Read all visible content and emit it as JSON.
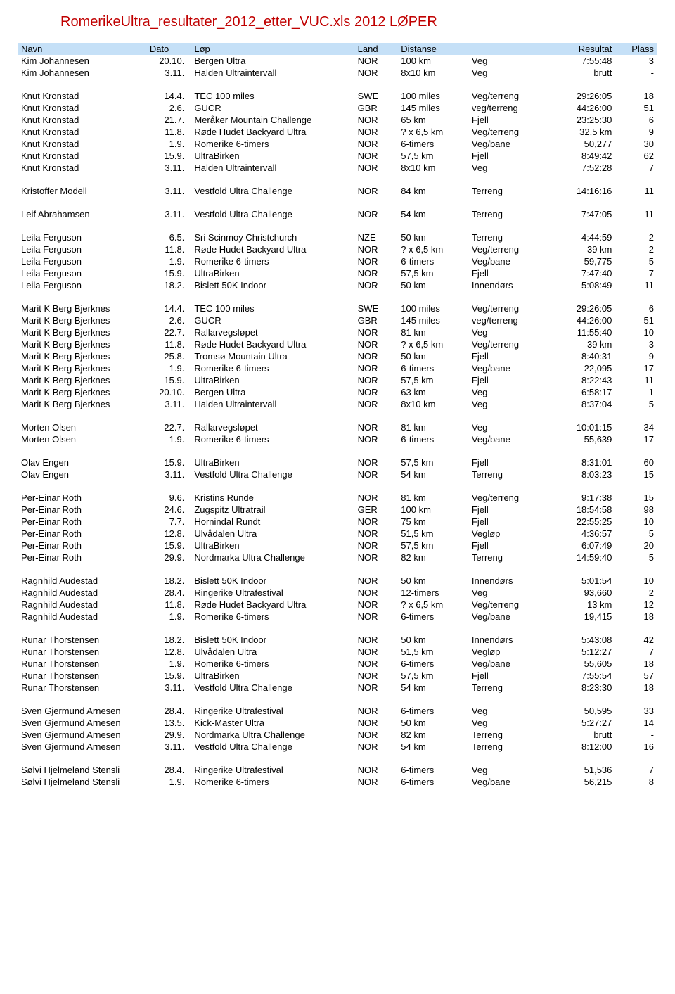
{
  "title": "RomerikeUltra_resultater_2012_etter_VUC.xls   2012 LØPER",
  "headers": {
    "navn": "Navn",
    "dato": "Dato",
    "lop": "Løp",
    "land": "Land",
    "distanse": "Distanse",
    "resultat": "Resultat",
    "plass": "Plass"
  },
  "groups": [
    {
      "rows": [
        {
          "navn": "Kim Johannesen",
          "dato": "20.10.",
          "lop": "Bergen Ultra",
          "land": "NOR",
          "dist": "100 km",
          "terr": "Veg",
          "res": "7:55:48",
          "plass": "3"
        },
        {
          "navn": "Kim Johannesen",
          "dato": "3.11.",
          "lop": "Halden Ultraintervall",
          "land": "NOR",
          "dist": "8x10 km",
          "terr": "Veg",
          "res": "brutt",
          "plass": "-"
        }
      ]
    },
    {
      "rows": [
        {
          "navn": "Knut Kronstad",
          "dato": "14.4.",
          "lop": "TEC 100 miles",
          "land": "SWE",
          "dist": "100 miles",
          "terr": "Veg/terreng",
          "res": "29:26:05",
          "plass": "18"
        },
        {
          "navn": "Knut Kronstad",
          "dato": "2.6.",
          "lop": "GUCR",
          "land": "GBR",
          "dist": "145 miles",
          "terr": "veg/terreng",
          "res": "44:26:00",
          "plass": "51"
        },
        {
          "navn": "Knut Kronstad",
          "dato": "21.7.",
          "lop": "Meråker Mountain Challenge",
          "land": "NOR",
          "dist": "65 km",
          "terr": "Fjell",
          "res": "23:25:30",
          "plass": "6"
        },
        {
          "navn": "Knut Kronstad",
          "dato": "11.8.",
          "lop": "Røde Hudet Backyard Ultra",
          "land": "NOR",
          "dist": "? x 6,5 km",
          "terr": "Veg/terreng",
          "res": "32,5 km",
          "plass": "9"
        },
        {
          "navn": "Knut Kronstad",
          "dato": "1.9.",
          "lop": "Romerike 6-timers",
          "land": "NOR",
          "dist": "6-timers",
          "terr": "Veg/bane",
          "res": "50,277",
          "plass": "30"
        },
        {
          "navn": "Knut Kronstad",
          "dato": "15.9.",
          "lop": "UltraBirken",
          "land": "NOR",
          "dist": "57,5 km",
          "terr": "Fjell",
          "res": "8:49:42",
          "plass": "62"
        },
        {
          "navn": "Knut Kronstad",
          "dato": "3.11.",
          "lop": "Halden Ultraintervall",
          "land": "NOR",
          "dist": "8x10 km",
          "terr": "Veg",
          "res": "7:52:28",
          "plass": "7"
        }
      ]
    },
    {
      "rows": [
        {
          "navn": "Kristoffer Modell",
          "dato": "3.11.",
          "lop": "Vestfold Ultra Challenge",
          "land": "NOR",
          "dist": "84 km",
          "terr": "Terreng",
          "res": "14:16:16",
          "plass": "11"
        }
      ]
    },
    {
      "rows": [
        {
          "navn": "Leif Abrahamsen",
          "dato": "3.11.",
          "lop": "Vestfold Ultra Challenge",
          "land": "NOR",
          "dist": "54 km",
          "terr": "Terreng",
          "res": "7:47:05",
          "plass": "11"
        }
      ]
    },
    {
      "rows": [
        {
          "navn": "Leila Ferguson",
          "dato": "6.5.",
          "lop": "Sri Scinmoy Christchurch",
          "land": "NZE",
          "dist": "50 km",
          "terr": "Terreng",
          "res": "4:44:59",
          "plass": "2"
        },
        {
          "navn": "Leila Ferguson",
          "dato": "11.8.",
          "lop": "Røde Hudet Backyard Ultra",
          "land": "NOR",
          "dist": "? x 6,5 km",
          "terr": "Veg/terreng",
          "res": "39 km",
          "plass": "2"
        },
        {
          "navn": "Leila Ferguson",
          "dato": "1.9.",
          "lop": "Romerike 6-timers",
          "land": "NOR",
          "dist": "6-timers",
          "terr": "Veg/bane",
          "res": "59,775",
          "plass": "5"
        },
        {
          "navn": "Leila Ferguson",
          "dato": "15.9.",
          "lop": "UltraBirken",
          "land": "NOR",
          "dist": "57,5 km",
          "terr": "Fjell",
          "res": "7:47:40",
          "plass": "7"
        },
        {
          "navn": "Leila Ferguson",
          "dato": "18.2.",
          "lop": "Bislett 50K Indoor",
          "land": "NOR",
          "dist": "50 km",
          "terr": "Innendørs",
          "res": "5:08:49",
          "plass": "11"
        }
      ]
    },
    {
      "rows": [
        {
          "navn": "Marit K Berg Bjerknes",
          "dato": "14.4.",
          "lop": "TEC 100 miles",
          "land": "SWE",
          "dist": "100 miles",
          "terr": "Veg/terreng",
          "res": "29:26:05",
          "plass": "6"
        },
        {
          "navn": "Marit K Berg Bjerknes",
          "dato": "2.6.",
          "lop": "GUCR",
          "land": "GBR",
          "dist": "145 miles",
          "terr": "veg/terreng",
          "res": "44:26:00",
          "plass": "51"
        },
        {
          "navn": "Marit K Berg Bjerknes",
          "dato": "22.7.",
          "lop": "Rallarvegsløpet",
          "land": "NOR",
          "dist": "81 km",
          "terr": "Veg",
          "res": "11:55:40",
          "plass": "10"
        },
        {
          "navn": "Marit K Berg Bjerknes",
          "dato": "11.8.",
          "lop": "Røde Hudet Backyard Ultra",
          "land": "NOR",
          "dist": "? x 6,5 km",
          "terr": "Veg/terreng",
          "res": "39 km",
          "plass": "3"
        },
        {
          "navn": "Marit K Berg Bjerknes",
          "dato": "25.8.",
          "lop": "Tromsø Mountain Ultra",
          "land": "NOR",
          "dist": "50 km",
          "terr": "Fjell",
          "res": "8:40:31",
          "plass": "9"
        },
        {
          "navn": "Marit K Berg Bjerknes",
          "dato": "1.9.",
          "lop": "Romerike 6-timers",
          "land": "NOR",
          "dist": "6-timers",
          "terr": "Veg/bane",
          "res": "22,095",
          "plass": "17"
        },
        {
          "navn": "Marit K Berg Bjerknes",
          "dato": "15.9.",
          "lop": "UltraBirken",
          "land": "NOR",
          "dist": "57,5 km",
          "terr": "Fjell",
          "res": "8:22:43",
          "plass": "11"
        },
        {
          "navn": "Marit K Berg Bjerknes",
          "dato": "20.10.",
          "lop": "Bergen Ultra",
          "land": "NOR",
          "dist": "63 km",
          "terr": "Veg",
          "res": "6:58:17",
          "plass": "1"
        },
        {
          "navn": "Marit K Berg Bjerknes",
          "dato": "3.11.",
          "lop": "Halden Ultraintervall",
          "land": "NOR",
          "dist": "8x10 km",
          "terr": "Veg",
          "res": "8:37:04",
          "plass": "5"
        }
      ]
    },
    {
      "rows": [
        {
          "navn": "Morten Olsen",
          "dato": "22.7.",
          "lop": "Rallarvegsløpet",
          "land": "NOR",
          "dist": "81 km",
          "terr": "Veg",
          "res": "10:01:15",
          "plass": "34"
        },
        {
          "navn": "Morten Olsen",
          "dato": "1.9.",
          "lop": "Romerike 6-timers",
          "land": "NOR",
          "dist": "6-timers",
          "terr": "Veg/bane",
          "res": "55,639",
          "plass": "17"
        }
      ]
    },
    {
      "rows": [
        {
          "navn": "Olav Engen",
          "dato": "15.9.",
          "lop": "UltraBirken",
          "land": "NOR",
          "dist": "57,5 km",
          "terr": "Fjell",
          "res": "8:31:01",
          "plass": "60"
        },
        {
          "navn": "Olav Engen",
          "dato": "3.11.",
          "lop": "Vestfold Ultra Challenge",
          "land": "NOR",
          "dist": "54 km",
          "terr": "Terreng",
          "res": "8:03:23",
          "plass": "15"
        }
      ]
    },
    {
      "rows": [
        {
          "navn": "Per-Einar Roth",
          "dato": "9.6.",
          "lop": "Kristins Runde",
          "land": "NOR",
          "dist": "81 km",
          "terr": "Veg/terreng",
          "res": "9:17:38",
          "plass": "15"
        },
        {
          "navn": "Per-Einar Roth",
          "dato": "24.6.",
          "lop": "Zugspitz Ultratrail",
          "land": "GER",
          "dist": "100 km",
          "terr": "Fjell",
          "res": "18:54:58",
          "plass": "98"
        },
        {
          "navn": "Per-Einar Roth",
          "dato": "7.7.",
          "lop": "Hornindal Rundt",
          "land": "NOR",
          "dist": "75 km",
          "terr": "Fjell",
          "res": "22:55:25",
          "plass": "10"
        },
        {
          "navn": "Per-Einar Roth",
          "dato": "12.8.",
          "lop": "Ulvådalen Ultra",
          "land": "NOR",
          "dist": "51,5 km",
          "terr": "Vegløp",
          "res": "4:36:57",
          "plass": "5"
        },
        {
          "navn": "Per-Einar Roth",
          "dato": "15.9.",
          "lop": "UltraBirken",
          "land": "NOR",
          "dist": "57,5 km",
          "terr": "Fjell",
          "res": "6:07:49",
          "plass": "20"
        },
        {
          "navn": "Per-Einar Roth",
          "dato": "29.9.",
          "lop": "Nordmarka Ultra Challenge",
          "land": "NOR",
          "dist": "82 km",
          "terr": "Terreng",
          "res": "14:59:40",
          "plass": "5"
        }
      ]
    },
    {
      "rows": [
        {
          "navn": "Ragnhild Audestad",
          "dato": "18.2.",
          "lop": "Bislett 50K Indoor",
          "land": "NOR",
          "dist": "50 km",
          "terr": "Innendørs",
          "res": "5:01:54",
          "plass": "10"
        },
        {
          "navn": "Ragnhild Audestad",
          "dato": "28.4.",
          "lop": "Ringerike Ultrafestival",
          "land": "NOR",
          "dist": "12-timers",
          "terr": "Veg",
          "res": "93,660",
          "plass": "2"
        },
        {
          "navn": "Ragnhild Audestad",
          "dato": "11.8.",
          "lop": "Røde Hudet Backyard Ultra",
          "land": "NOR",
          "dist": "? x 6,5 km",
          "terr": "Veg/terreng",
          "res": "13 km",
          "plass": "12"
        },
        {
          "navn": "Ragnhild Audestad",
          "dato": "1.9.",
          "lop": "Romerike 6-timers",
          "land": "NOR",
          "dist": "6-timers",
          "terr": "Veg/bane",
          "res": "19,415",
          "plass": "18"
        }
      ]
    },
    {
      "rows": [
        {
          "navn": "Runar Thorstensen",
          "dato": "18.2.",
          "lop": "Bislett 50K Indoor",
          "land": "NOR",
          "dist": "50 km",
          "terr": "Innendørs",
          "res": "5:43:08",
          "plass": "42"
        },
        {
          "navn": "Runar Thorstensen",
          "dato": "12.8.",
          "lop": "Ulvådalen Ultra",
          "land": "NOR",
          "dist": "51,5 km",
          "terr": "Vegløp",
          "res": "5:12:27",
          "plass": "7"
        },
        {
          "navn": "Runar Thorstensen",
          "dato": "1.9.",
          "lop": "Romerike 6-timers",
          "land": "NOR",
          "dist": "6-timers",
          "terr": "Veg/bane",
          "res": "55,605",
          "plass": "18"
        },
        {
          "navn": "Runar Thorstensen",
          "dato": "15.9.",
          "lop": "UltraBirken",
          "land": "NOR",
          "dist": "57,5 km",
          "terr": "Fjell",
          "res": "7:55:54",
          "plass": "57"
        },
        {
          "navn": "Runar Thorstensen",
          "dato": "3.11.",
          "lop": "Vestfold Ultra Challenge",
          "land": "NOR",
          "dist": "54 km",
          "terr": "Terreng",
          "res": "8:23:30",
          "plass": "18"
        }
      ]
    },
    {
      "rows": [
        {
          "navn": "Sven Gjermund Arnesen",
          "dato": "28.4.",
          "lop": "Ringerike Ultrafestival",
          "land": "NOR",
          "dist": "6-timers",
          "terr": "Veg",
          "res": "50,595",
          "plass": "33"
        },
        {
          "navn": "Sven Gjermund Arnesen",
          "dato": "13.5.",
          "lop": "Kick-Master Ultra",
          "land": "NOR",
          "dist": "50 km",
          "terr": "Veg",
          "res": "5:27:27",
          "plass": "14"
        },
        {
          "navn": "Sven Gjermund Arnesen",
          "dato": "29.9.",
          "lop": "Nordmarka Ultra Challenge",
          "land": "NOR",
          "dist": "82 km",
          "terr": "Terreng",
          "res": "brutt",
          "plass": "-"
        },
        {
          "navn": "Sven Gjermund Arnesen",
          "dato": "3.11.",
          "lop": "Vestfold Ultra Challenge",
          "land": "NOR",
          "dist": "54 km",
          "terr": "Terreng",
          "res": "8:12:00",
          "plass": "16"
        }
      ]
    },
    {
      "rows": [
        {
          "navn": "Sølvi Hjelmeland Stensli",
          "dato": "28.4.",
          "lop": "Ringerike Ultrafestival",
          "land": "NOR",
          "dist": "6-timers",
          "terr": "Veg",
          "res": "51,536",
          "plass": "7"
        },
        {
          "navn": "Sølvi Hjelmeland Stensli",
          "dato": "1.9.",
          "lop": "Romerike 6-timers",
          "land": "NOR",
          "dist": "6-timers",
          "terr": "Veg/bane",
          "res": "56,215",
          "plass": "8"
        }
      ]
    }
  ]
}
